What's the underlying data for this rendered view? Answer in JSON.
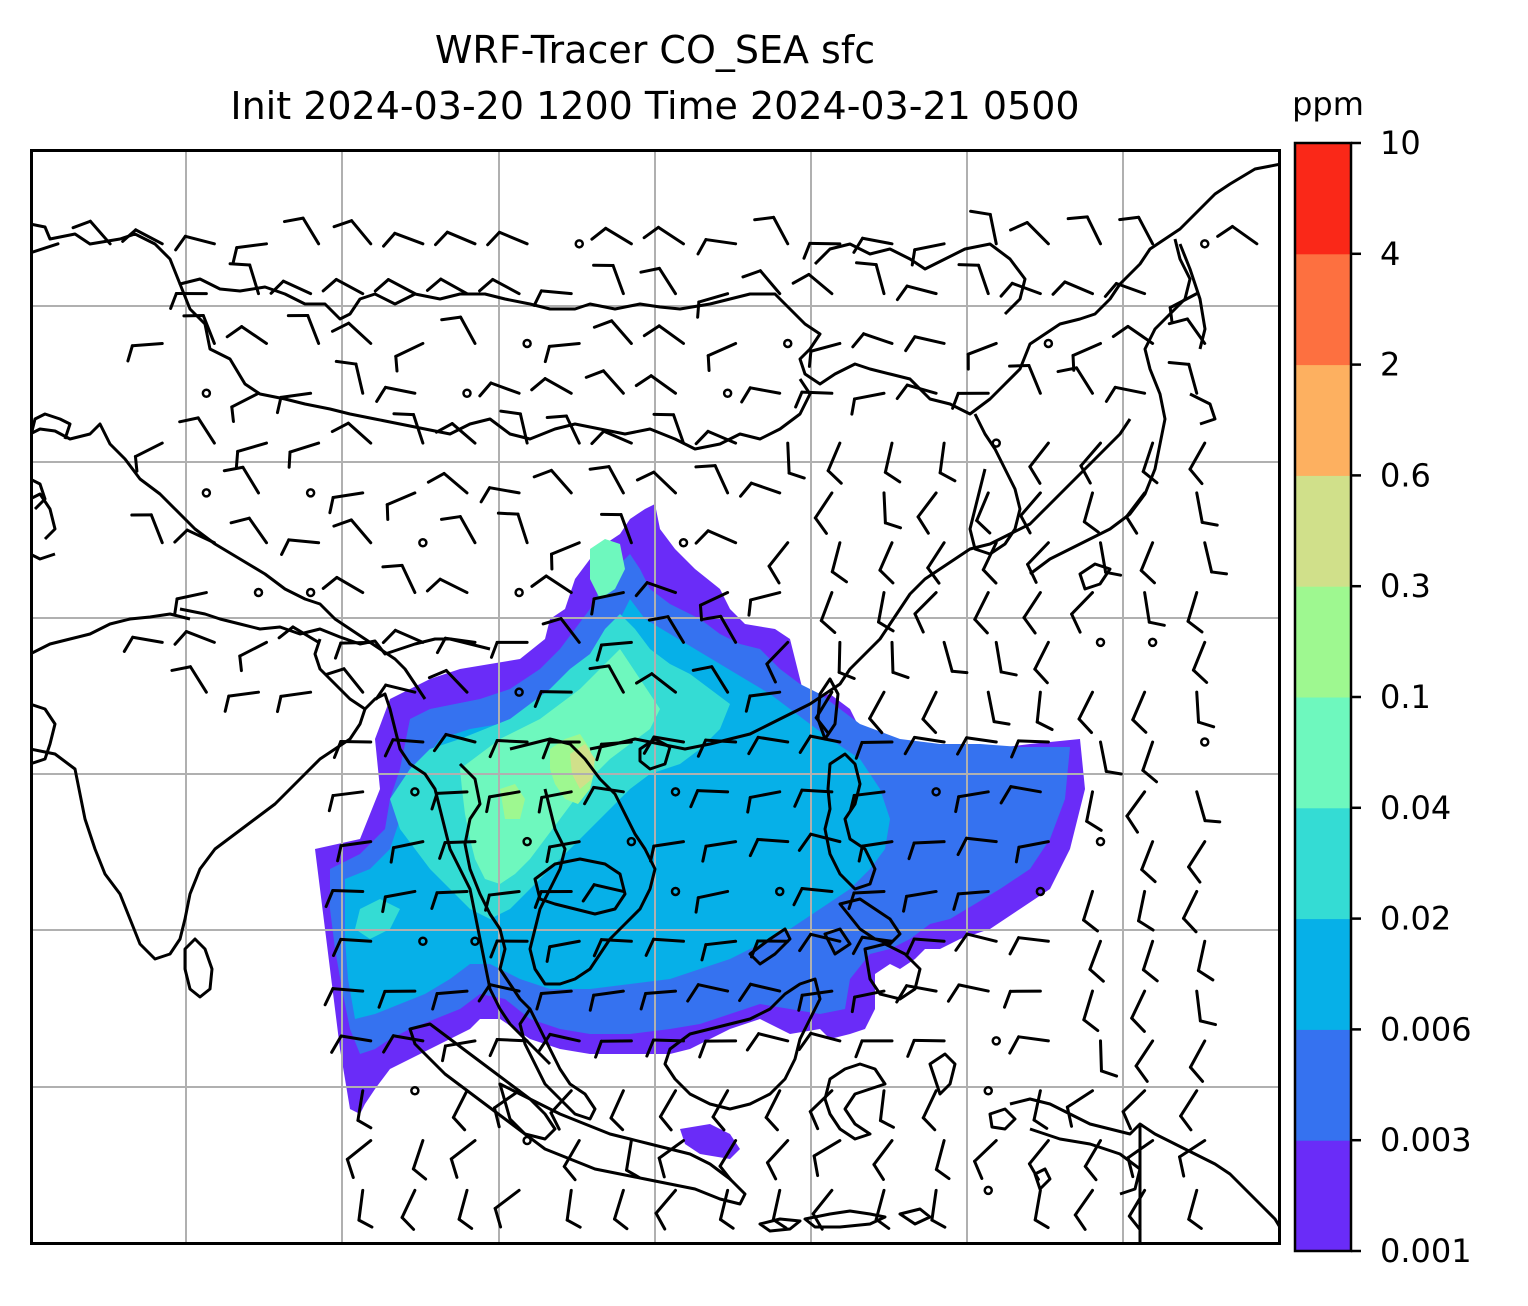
{
  "title": {
    "line1": "WRF-Tracer CO_SEA sfc",
    "line2": "Init 2024-03-20 1200 Time 2024-03-21 0500"
  },
  "colorbar": {
    "unit": "ppm",
    "levels": [
      "0.001",
      "0.003",
      "0.006",
      "0.02",
      "0.04",
      "0.1",
      "0.3",
      "0.6",
      "2",
      "4",
      "10"
    ],
    "colors": [
      "#6a2cf8",
      "#3572f0",
      "#06b0e8",
      "#34dcd4",
      "#6ef8be",
      "#9ef890",
      "#d0e08a",
      "#fdb060",
      "#fd7040",
      "#fa2818"
    ]
  },
  "map": {
    "grid_color": "#b0b0b0",
    "coastline_color": "#000000",
    "wind_barb_color": "#000000"
  }
}
